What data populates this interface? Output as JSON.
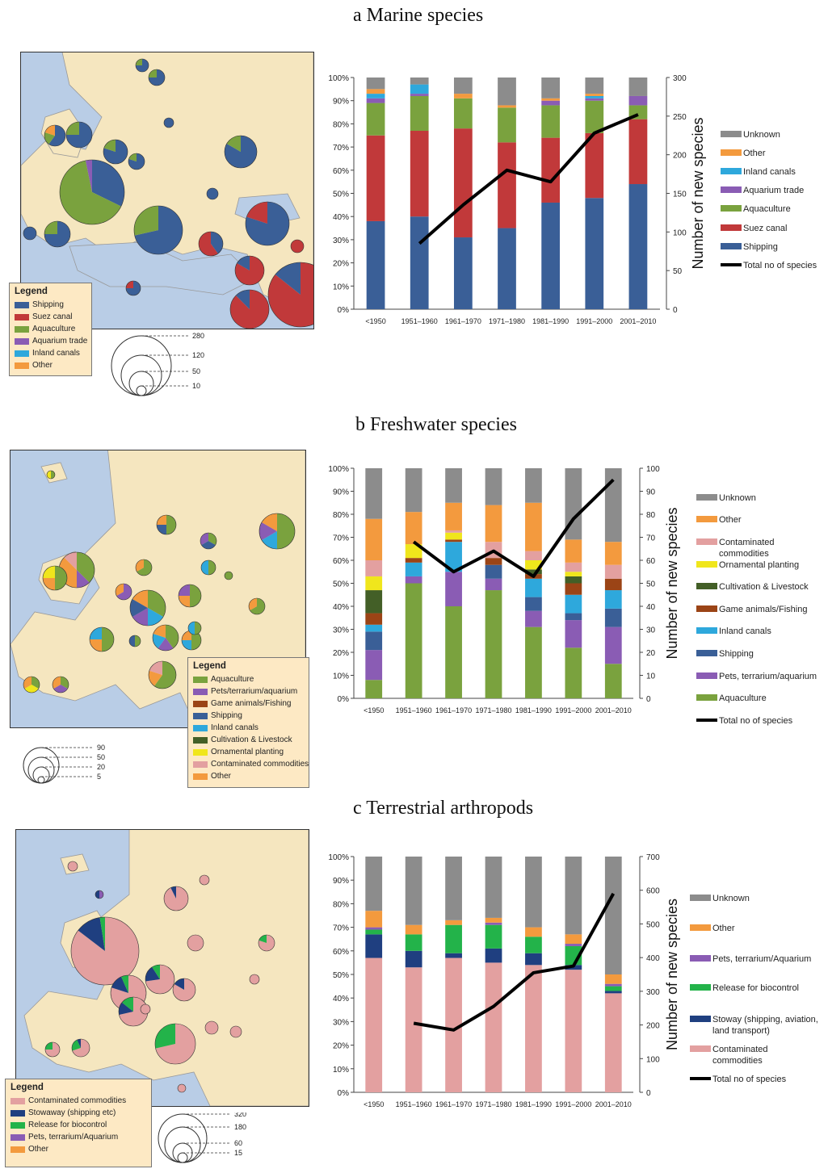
{
  "colors": {
    "unknown": "#8c8c8c",
    "other": "#f39a3e",
    "inland": "#2ea8dc",
    "aquarium": "#8a5cb4",
    "aquaculture": "#7aa23e",
    "suez": "#c1393a",
    "shipping": "#3a5f97",
    "contaminated": "#e3a0a0",
    "ornamental": "#f0e61c",
    "cultivation": "#435f27",
    "game": "#9b4416",
    "biocontrol": "#23b34a",
    "stowaway": "#1f3f80",
    "line": "#000000",
    "sea": "#b9cde6",
    "land": "#f5e6bf"
  },
  "panels": [
    {
      "id": "marine",
      "title": "a Marine species",
      "legend": {
        "title": "Legend",
        "items": [
          {
            "label": "Shipping",
            "color": "#3a5f97"
          },
          {
            "label": "Suez canal",
            "color": "#c1393a"
          },
          {
            "label": "Aquaculture",
            "color": "#7aa23e"
          },
          {
            "label": "Aquarium trade",
            "color": "#8a5cb4"
          },
          {
            "label": "Inland canals",
            "color": "#2ea8dc"
          },
          {
            "label": "Other",
            "color": "#f39a3e"
          }
        ]
      },
      "size_key": [
        "280",
        "120",
        "50",
        "10"
      ]
    },
    {
      "id": "freshwater",
      "title": "b Freshwater species",
      "legend": {
        "title": "Legend",
        "items": [
          {
            "label": "Aquaculture",
            "color": "#7aa23e"
          },
          {
            "label": "Pets/terrarium/aquarium",
            "color": "#8a5cb4"
          },
          {
            "label": "Game animals/Fishing",
            "color": "#9b4416"
          },
          {
            "label": "Shipping",
            "color": "#3a5f97"
          },
          {
            "label": "Inland canals",
            "color": "#2ea8dc"
          },
          {
            "label": "Cultivation & Livestock",
            "color": "#435f27"
          },
          {
            "label": "Ornamental planting",
            "color": "#f0e61c"
          },
          {
            "label": "Contaminated commodities",
            "color": "#e3a0a0"
          },
          {
            "label": "Other",
            "color": "#f39a3e"
          }
        ]
      },
      "size_key": [
        "90",
        "50",
        "20",
        "5"
      ]
    },
    {
      "id": "terrestrial",
      "title": "c Terrestrial arthropods",
      "legend": {
        "title": "Legend",
        "items": [
          {
            "label": "Contaminated commodities",
            "color": "#e3a0a0"
          },
          {
            "label": "Stowaway (shipping etc)",
            "color": "#1f3f80"
          },
          {
            "label": "Release for biocontrol",
            "color": "#23b34a"
          },
          {
            "label": "Pets, terrarium/Aquarium",
            "color": "#8a5cb4"
          },
          {
            "label": "Other",
            "color": "#f39a3e"
          }
        ]
      },
      "size_key": [
        "320",
        "180",
        "60",
        "15"
      ]
    }
  ],
  "chart_data": [
    {
      "type": "bar",
      "stacked": true,
      "categories": [
        "<1950",
        "1951–1960",
        "1961–1970",
        "1971–1980",
        "1981–1990",
        "1991–2000",
        "2001–2010"
      ],
      "y_ticks": [
        "0%",
        "10%",
        "20%",
        "30%",
        "40%",
        "50%",
        "60%",
        "70%",
        "80%",
        "90%",
        "100%"
      ],
      "y2_ticks": [
        "0",
        "50",
        "100",
        "150",
        "200",
        "250",
        "300"
      ],
      "y2label": "Number of new species",
      "y2lim": [
        0,
        300
      ],
      "series": [
        {
          "name": "Shipping",
          "color": "#3a5f97",
          "values": [
            38,
            40,
            31,
            35,
            46,
            48,
            54
          ]
        },
        {
          "name": "Suez canal",
          "color": "#c1393a",
          "values": [
            37,
            37,
            47,
            37,
            28,
            28,
            28
          ]
        },
        {
          "name": "Aquaculture",
          "color": "#7aa23e",
          "values": [
            14,
            15,
            13,
            15,
            14,
            14,
            6
          ]
        },
        {
          "name": "Aquarium trade",
          "color": "#8a5cb4",
          "values": [
            2,
            1,
            0,
            0,
            2,
            1,
            4
          ]
        },
        {
          "name": "Inland canals",
          "color": "#2ea8dc",
          "values": [
            2,
            4,
            0,
            0,
            0,
            1,
            0
          ]
        },
        {
          "name": "Other",
          "color": "#f39a3e",
          "values": [
            2,
            0,
            2,
            1,
            1,
            1,
            0
          ]
        },
        {
          "name": "Unknown",
          "color": "#8c8c8c",
          "values": [
            5,
            3,
            7,
            12,
            9,
            7,
            8
          ]
        }
      ],
      "legend_order": [
        "Unknown",
        "Other",
        "Inland canals",
        "Aquarium trade",
        "Aquaculture",
        "Suez canal",
        "Shipping"
      ],
      "line": {
        "name": "Total no of species",
        "values": [
          null,
          85,
          135,
          180,
          165,
          228,
          252
        ]
      }
    },
    {
      "type": "bar",
      "stacked": true,
      "categories": [
        "<1950",
        "1951–1960",
        "1961–1970",
        "1971–1980",
        "1981–1990",
        "1991–2000",
        "2001–2010"
      ],
      "y_ticks": [
        "0%",
        "10%",
        "20%",
        "30%",
        "40%",
        "50%",
        "60%",
        "70%",
        "80%",
        "90%",
        "100%"
      ],
      "y2_ticks": [
        "0",
        "10",
        "20",
        "30",
        "40",
        "50",
        "60",
        "70",
        "80",
        "90",
        "100"
      ],
      "y2label": "Number of new species",
      "y2lim": [
        0,
        100
      ],
      "series": [
        {
          "name": "Aquaculture",
          "color": "#7aa23e",
          "values": [
            8,
            50,
            40,
            47,
            31,
            22,
            15
          ]
        },
        {
          "name": "Pets, terrarium/aquarium",
          "color": "#8a5cb4",
          "values": [
            13,
            3,
            15,
            5,
            7,
            12,
            16
          ]
        },
        {
          "name": "Shipping",
          "color": "#3a5f97",
          "values": [
            8,
            0,
            0,
            6,
            6,
            3,
            8
          ]
        },
        {
          "name": "Inland canals",
          "color": "#2ea8dc",
          "values": [
            3,
            6,
            13,
            0,
            8,
            8,
            8
          ]
        },
        {
          "name": "Game animals/Fishing",
          "color": "#9b4416",
          "values": [
            5,
            2,
            1,
            3,
            2,
            5,
            5
          ]
        },
        {
          "name": "Cultivation & Livestock",
          "color": "#435f27",
          "values": [
            10,
            0,
            0,
            0,
            2,
            3,
            0
          ]
        },
        {
          "name": "Ornamental planting",
          "color": "#f0e61c",
          "values": [
            6,
            6,
            3,
            0,
            4,
            2,
            0
          ]
        },
        {
          "name": "Contaminated commodities",
          "color": "#e3a0a0",
          "values": [
            7,
            0,
            1,
            7,
            4,
            4,
            6
          ]
        },
        {
          "name": "Other",
          "color": "#f39a3e",
          "values": [
            18,
            14,
            12,
            16,
            21,
            10,
            10
          ]
        },
        {
          "name": "Unknown",
          "color": "#8c8c8c",
          "values": [
            22,
            19,
            15,
            16,
            15,
            31,
            32
          ]
        }
      ],
      "legend_order": [
        "Unknown",
        "Other",
        "Contaminated commodities",
        "Ornamental planting",
        "Cultivation & Livestock",
        "Game animals/Fishing",
        "Inland canals",
        "Shipping",
        "Pets, terrarium/aquarium",
        "Aquaculture"
      ],
      "line": {
        "name": "Total no of species",
        "values": [
          null,
          68,
          55,
          64,
          53,
          78,
          95
        ]
      }
    },
    {
      "type": "bar",
      "stacked": true,
      "categories": [
        "<1950",
        "1951–1960",
        "1961–1970",
        "1971–1980",
        "1981–1990",
        "1991–2000",
        "2001–2010"
      ],
      "y_ticks": [
        "0%",
        "10%",
        "20%",
        "30%",
        "40%",
        "50%",
        "60%",
        "70%",
        "80%",
        "90%",
        "100%"
      ],
      "y2_ticks": [
        "0",
        "100",
        "200",
        "300",
        "400",
        "500",
        "600",
        "700"
      ],
      "y2label": "Number of new species",
      "y2lim": [
        0,
        700
      ],
      "series": [
        {
          "name": "Contaminated commodities",
          "color": "#e3a0a0",
          "values": [
            57,
            53,
            57,
            55,
            54,
            52,
            42
          ]
        },
        {
          "name": "Stoway (shipping, aviation, land transport)",
          "color": "#1f3f80",
          "values": [
            10,
            7,
            2,
            6,
            5,
            2,
            1
          ]
        },
        {
          "name": "Release for biocontrol",
          "color": "#23b34a",
          "values": [
            2,
            7,
            12,
            10,
            7,
            8,
            2
          ]
        },
        {
          "name": "Pets, terrarium/Aquarium",
          "color": "#8a5cb4",
          "values": [
            1,
            0,
            0,
            1,
            0,
            1,
            1
          ]
        },
        {
          "name": "Other",
          "color": "#f39a3e",
          "values": [
            7,
            4,
            2,
            2,
            4,
            4,
            4
          ]
        },
        {
          "name": "Unknown",
          "color": "#8c8c8c",
          "values": [
            23,
            29,
            27,
            26,
            30,
            33,
            50
          ]
        }
      ],
      "legend_order": [
        "Unknown",
        "Other",
        "Pets, terrarium/Aquarium",
        "Release for biocontrol",
        "Stoway (shipping, aviation, land transport)",
        "Contaminated commodities"
      ],
      "line": {
        "name": "Total no of species",
        "values": [
          null,
          205,
          185,
          255,
          355,
          375,
          590
        ]
      }
    }
  ]
}
